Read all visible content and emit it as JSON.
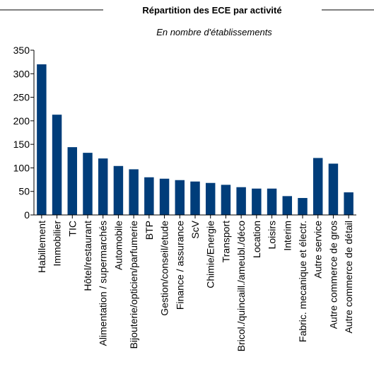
{
  "chart_data": {
    "type": "bar",
    "title": "Répartition des ECE par activité",
    "subtitle": "En nombre d'établissements",
    "xlabel": "",
    "ylabel": "",
    "ylim": [
      0,
      350
    ],
    "yticks": [
      0,
      50,
      100,
      150,
      200,
      250,
      300,
      350
    ],
    "grid": false,
    "legend": "none",
    "bar_color": "#003d7a",
    "categories": [
      "Habillement",
      "Immobilier",
      "TIC",
      "Hôtel/restaurant",
      "Alimentation / supermarchés",
      "Automobile",
      "Bijouterie/opticien/parfumerie",
      "BTP",
      "Gestion/conseil/etude",
      "Finance / assurance",
      "ScV",
      "Chimie/Energie",
      "Transport",
      "Bricol./quincaill./ameubl./déco",
      "Location",
      "Loisirs",
      "Interim",
      "Fabric. mecanique et électr.",
      "Autre service",
      "Autre commerce de gros",
      "Autre commerce de détail"
    ],
    "values": [
      320,
      213,
      144,
      132,
      120,
      104,
      97,
      80,
      77,
      74,
      71,
      68,
      64,
      59,
      56,
      56,
      40,
      36,
      121,
      109,
      48
    ]
  }
}
